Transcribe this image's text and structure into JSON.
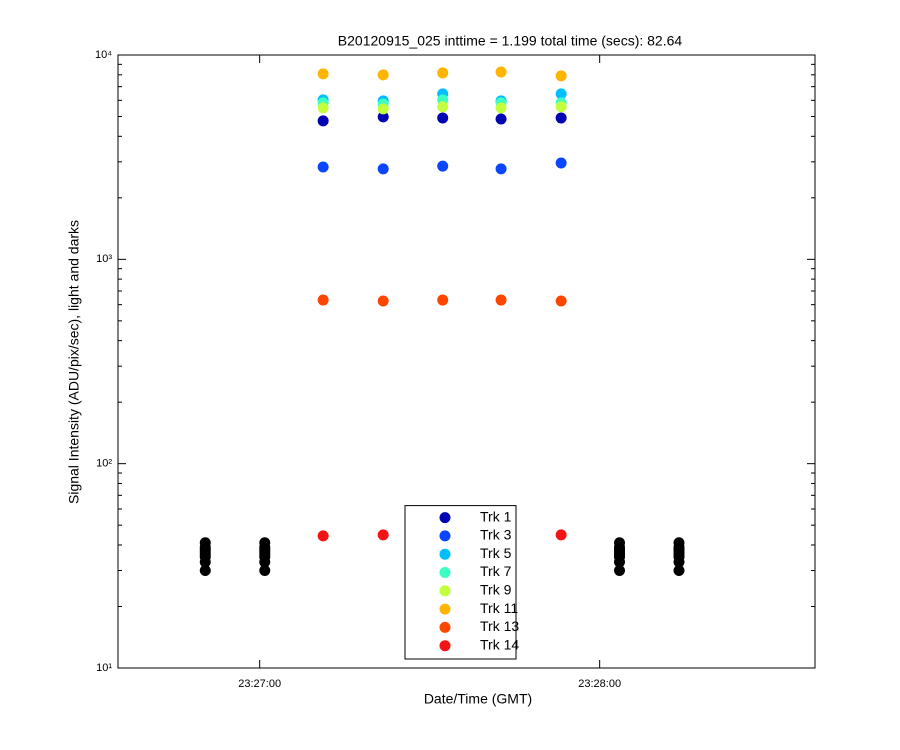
{
  "chart_data": {
    "type": "scatter",
    "title": "B20120915_025 inttime = 1.199 total time (secs): 82.64",
    "xlabel": "Date/Time (GMT)",
    "ylabel": "Signal Intensity (ADU/pix/sec), light and darks",
    "yscale": "log",
    "xlim": [
      84395,
      84518
    ],
    "xticks": [
      {
        "value": 84420,
        "label": "23:27:00"
      },
      {
        "value": 84480,
        "label": "23:28:00"
      }
    ],
    "ylim": [
      10,
      10000
    ],
    "yticks": [
      {
        "value": 10,
        "label": "10¹"
      },
      {
        "value": 100,
        "label": "10²"
      },
      {
        "value": 1000,
        "label": "10³"
      },
      {
        "value": 10000,
        "label": "10⁴"
      }
    ],
    "grid": false,
    "legend": "bottom",
    "series": [
      {
        "color": "#000000",
        "x": [
          84410.4,
          84410.4,
          84410.4,
          84410.4,
          84410.4,
          84410.4,
          84410.4,
          84410.4,
          84420.9,
          84420.9,
          84420.9,
          84420.9,
          84420.9,
          84420.9,
          84420.9,
          84420.9,
          84483.5,
          84483.5,
          84483.5,
          84483.5,
          84483.5,
          84483.5,
          84483.5,
          84483.5,
          84494,
          84494,
          84494,
          84494,
          84494,
          84494,
          84494,
          84494
        ],
        "values": [
          30,
          33,
          35,
          36,
          37,
          38,
          39,
          41,
          30,
          33,
          35,
          36,
          37,
          38,
          39,
          41,
          30,
          33,
          35,
          36,
          37,
          38,
          39,
          41,
          30,
          33,
          35,
          36,
          37,
          38,
          39,
          41
        ]
      },
      {
        "name": "Trk 1",
        "color": "#0000b4",
        "x": [
          84431.2,
          84441.8,
          84452.3,
          84462.6,
          84473.2
        ],
        "values": [
          4760,
          4980,
          4920,
          4860,
          4920
        ]
      },
      {
        "name": "Trk 3",
        "color": "#0a46ff",
        "x": [
          84431.2,
          84441.8,
          84452.3,
          84462.6,
          84473.2
        ],
        "values": [
          2830,
          2770,
          2860,
          2770,
          2960
        ]
      },
      {
        "name": "Trk 5",
        "color": "#00beff",
        "x": [
          84431.2,
          84441.8,
          84452.3,
          84462.6,
          84473.2
        ],
        "values": [
          6030,
          5960,
          6450,
          5960,
          6450
        ]
      },
      {
        "name": "Trk 7",
        "color": "#3cffc3",
        "x": [
          84431.2,
          84441.8,
          84452.3,
          84462.6,
          84473.2
        ],
        "values": [
          5830,
          5760,
          6030,
          5830,
          5830
        ]
      },
      {
        "name": "Trk 9",
        "color": "#c3ff3c",
        "x": [
          84431.2,
          84441.8,
          84452.3,
          84462.6,
          84473.2
        ],
        "values": [
          5510,
          5450,
          5580,
          5510,
          5580
        ]
      },
      {
        "name": "Trk 11",
        "color": "#ffb400",
        "x": [
          84431.2,
          84441.8,
          84452.3,
          84462.6,
          84473.2
        ],
        "values": [
          8080,
          7990,
          8170,
          8260,
          7900
        ]
      },
      {
        "name": "Trk 13",
        "color": "#ff4600",
        "x": [
          84431.2,
          84441.8,
          84452.3,
          84462.6,
          84473.2
        ],
        "values": [
          632,
          625,
          632,
          632,
          625
        ]
      },
      {
        "name": "Trk 14",
        "color": "#f51414",
        "x": [
          84431.2,
          84441.8,
          84452.3,
          84462.6,
          84473.2
        ],
        "values": [
          44.3,
          44.8,
          null,
          null,
          44.8
        ]
      }
    ]
  }
}
